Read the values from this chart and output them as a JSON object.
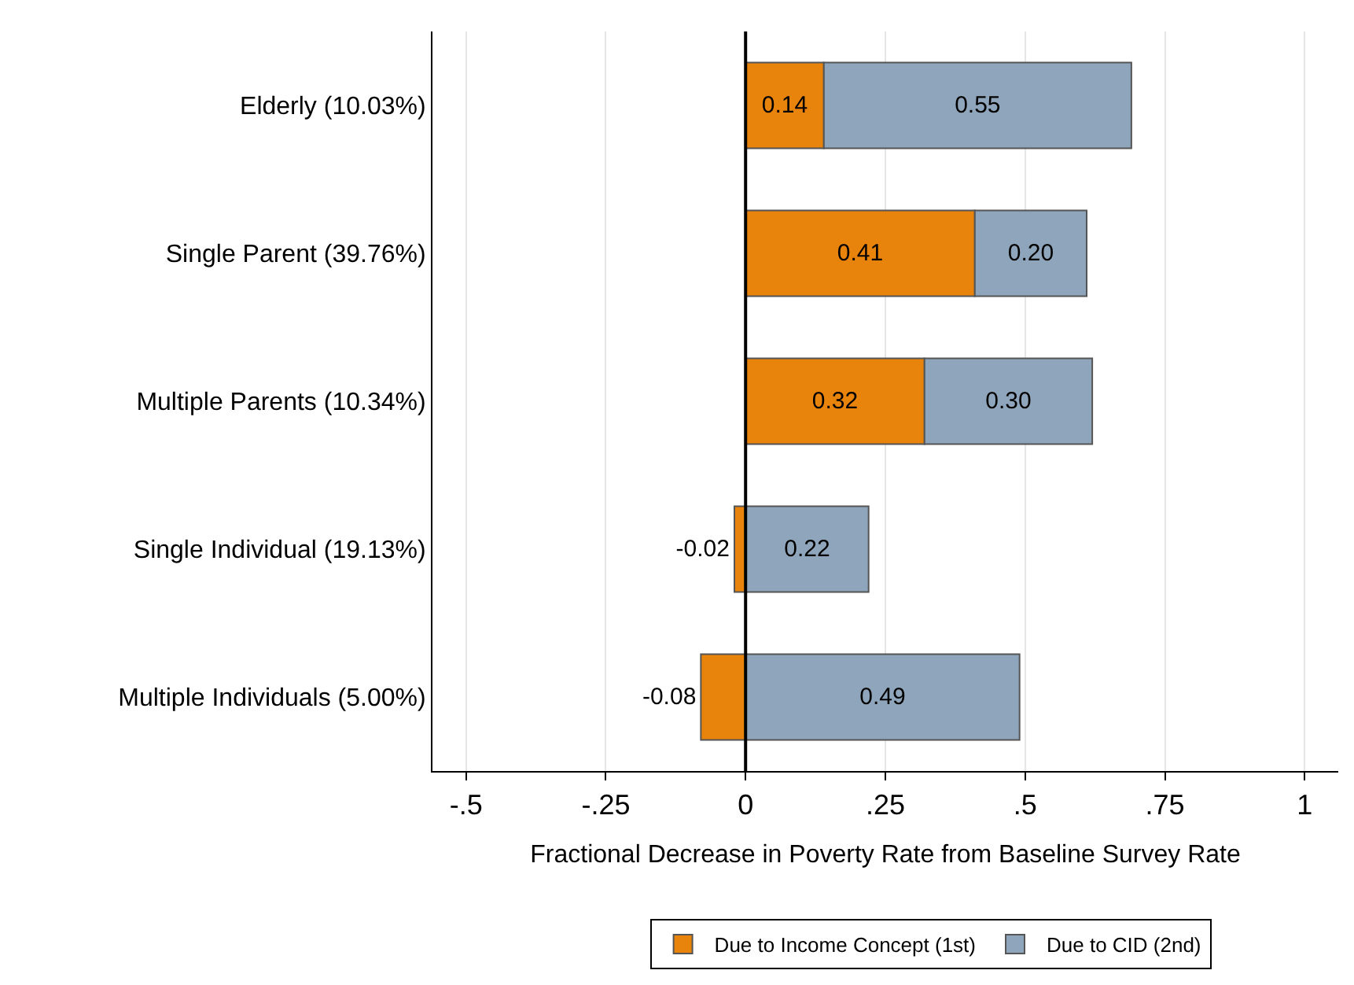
{
  "chart_data": {
    "type": "bar",
    "orientation": "horizontal",
    "stacked": true,
    "categories": [
      "Elderly (10.03%)",
      "Single Parent (39.76%)",
      "Multiple Parents (10.34%)",
      "Single Individual (19.13%)",
      "Multiple Individuals (5.00%)"
    ],
    "series": [
      {
        "name": "Due to Income Concept (1st)",
        "color": "#e8830c",
        "values": [
          0.14,
          0.41,
          0.32,
          -0.02,
          -0.08
        ],
        "value_labels": [
          "0.14",
          "0.41",
          "0.32",
          "-0.02",
          "-0.08"
        ]
      },
      {
        "name": "Due to CID (2nd)",
        "color": "#8fa5bb",
        "values": [
          0.55,
          0.2,
          0.3,
          0.22,
          0.49
        ],
        "value_labels": [
          "0.55",
          "0.20",
          "0.30",
          "0.22",
          "0.49"
        ]
      }
    ],
    "xlabel": "Fractional Decrease in Poverty Rate from Baseline Survey Rate",
    "xlim": [
      -0.56,
      1.06
    ],
    "xticks": [
      {
        "value": -0.5,
        "label": "-.5"
      },
      {
        "value": -0.25,
        "label": "-.25"
      },
      0,
      {
        "value": 0.25,
        "label": ".25"
      },
      {
        "value": 0.5,
        "label": ".5"
      },
      {
        "value": 0.75,
        "label": ".75"
      },
      1
    ],
    "ref_lines": [
      {
        "axis": "x",
        "value": 0,
        "color": "#000000"
      }
    ],
    "grid": "x",
    "legend": "bottom"
  }
}
